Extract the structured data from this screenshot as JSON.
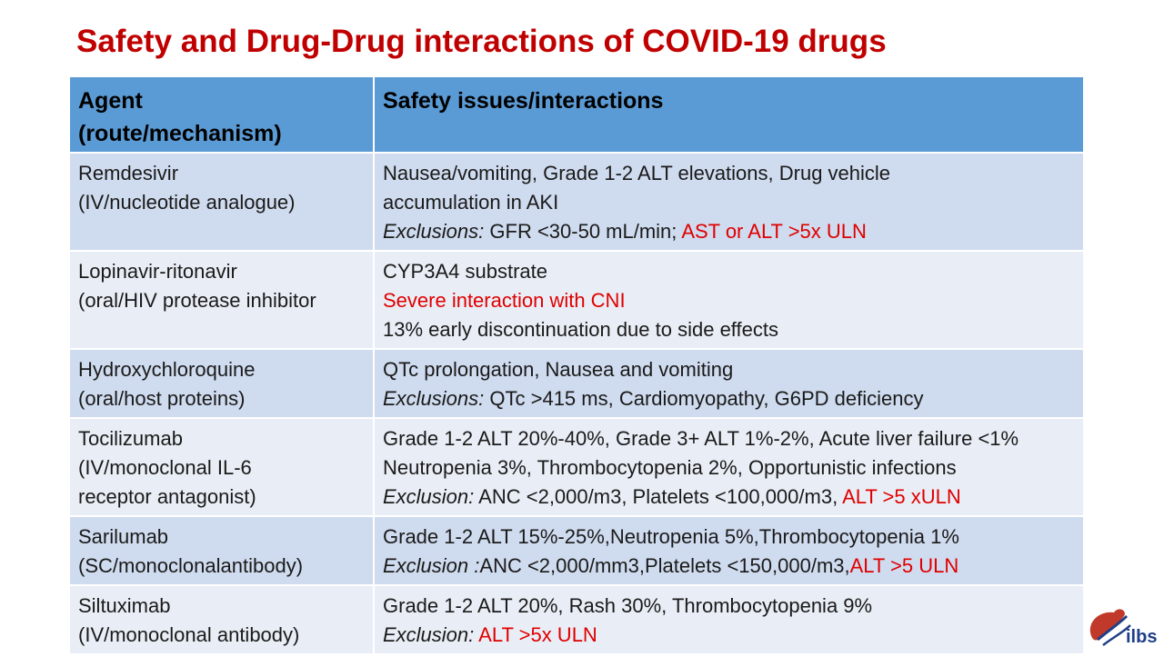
{
  "title": "Safety and Drug-Drug interactions of COVID-19 drugs",
  "header": {
    "col1_line1": "Agent",
    "col1_line2": "(route/mechanism)",
    "col2": "Safety issues/interactions"
  },
  "rows": [
    {
      "agent_name": "Remdesivir",
      "agent_route": "(IV/nucleotide analogue)",
      "line1": "Nausea/vomiting, Grade 1-2 ALT elevations, Drug vehicle",
      "line2": "accumulation in AKI",
      "excl_label": "Exclusions:",
      "excl_text": " GFR <30-50 mL/min; ",
      "excl_red": "AST or ALT >5x ULN"
    },
    {
      "agent_name": "Lopinavir-ritonavir",
      "agent_route": "(oral/HIV protease inhibitor",
      "line1": "CYP3A4 substrate",
      "line2_red": "Severe interaction with CNI",
      "line3": "13% early discontinuation due to side effects"
    },
    {
      "agent_name": "Hydroxychloroquine",
      "agent_route": "(oral/host proteins)",
      "line1": "QTc prolongation, Nausea and vomiting",
      "excl_label": "Exclusions:",
      "excl_text": " QTc >415 ms, Cardiomyopathy, G6PD deficiency"
    },
    {
      "agent_name": "Tocilizumab",
      "agent_route_1": "(IV/monoclonal IL-6",
      "agent_route_2": "receptor antagonist)",
      "line1": "Grade 1-2 ALT 20%-40%, Grade 3+ ALT 1%-2%, Acute liver failure <1%",
      "line2": "Neutropenia 3%, Thrombocytopenia 2%, Opportunistic infections",
      "excl_label": "Exclusion:",
      "excl_text": " ANC <2,000/m3, Platelets <100,000/m3, ",
      "excl_red": "ALT >5 xULN"
    },
    {
      "agent_name": "Sarilumab",
      "agent_route": "(SC/monoclonalantibody)",
      "line1": "Grade 1-2 ALT 15%-25%,Neutropenia 5%,Thrombocytopenia 1%",
      "excl_label": "Exclusion :",
      "excl_text": "ANC <2,000/mm3,Platelets <150,000/m3,",
      "excl_red": "ALT >5 ULN"
    },
    {
      "agent_name": "Siltuximab",
      "agent_route": "(IV/monoclonal antibody)",
      "line1": "Grade 1-2 ALT 20%, Rash 30%, Thrombocytopenia 9%",
      "excl_label": "Exclusion:",
      "excl_red": " ALT >5x ULN"
    }
  ],
  "logo": {
    "text": "ilbs"
  },
  "colors": {
    "title": "#c00000",
    "header_bg": "#5b9bd5",
    "row_dark": "#cfdbee",
    "row_light": "#e9eef6",
    "red_text": "#e00000"
  }
}
